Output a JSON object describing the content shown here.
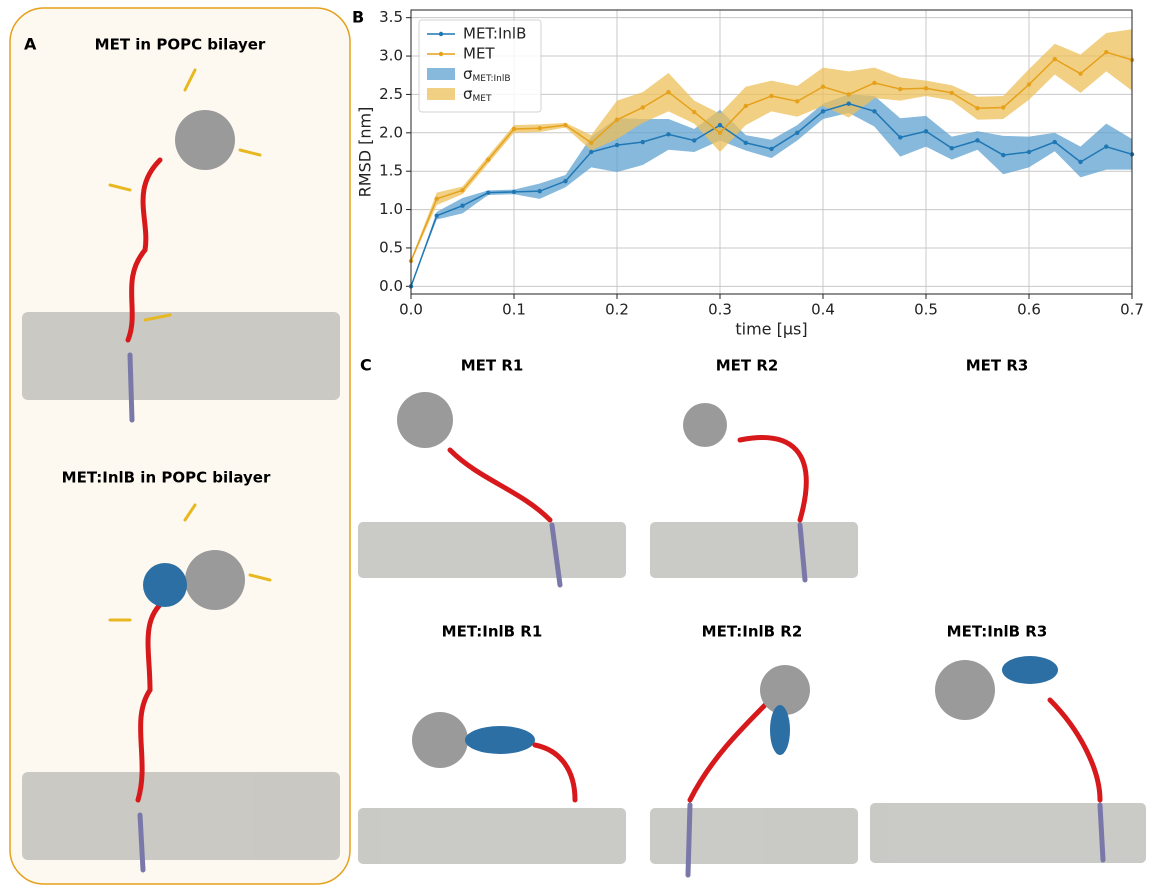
{
  "panel_labels": [
    "A",
    "B",
    "C"
  ],
  "panel_a_titles": [
    "MET in POPC bilayer",
    "MET:InlB in POPC bilayer"
  ],
  "panel_c_titles": [
    "MET R1",
    "MET R2",
    "MET R3",
    "MET:InlB R1",
    "MET:InlB R2",
    "MET:InlB R3"
  ],
  "chart_data": {
    "type": "line",
    "x_label": "time [μs]",
    "y_label": "RMSD [nm]",
    "x": [
      0,
      0.025,
      0.05,
      0.075,
      0.1,
      0.125,
      0.15,
      0.175,
      0.2,
      0.225,
      0.25,
      0.275,
      0.3,
      0.325,
      0.35,
      0.375,
      0.4,
      0.425,
      0.45,
      0.475,
      0.5,
      0.525,
      0.55,
      0.575,
      0.6,
      0.625,
      0.65,
      0.675,
      0.7
    ],
    "series": [
      {
        "name": "MET:InlB",
        "color": "#1f77b4",
        "values": [
          0.0,
          0.92,
          1.05,
          1.22,
          1.23,
          1.24,
          1.37,
          1.75,
          1.84,
          1.88,
          1.98,
          1.9,
          2.1,
          1.87,
          1.79,
          2.0,
          2.28,
          2.38,
          2.28,
          1.94,
          2.02,
          1.8,
          1.9,
          1.71,
          1.75,
          1.88,
          1.62,
          1.82,
          1.72
        ],
        "band": {
          "symbol": "σ",
          "subscript": "MET:InlB",
          "color": "#5fa2d0",
          "errors": [
            0.0,
            0.05,
            0.1,
            0.03,
            0.03,
            0.1,
            0.08,
            0.2,
            0.35,
            0.3,
            0.2,
            0.15,
            0.2,
            0.1,
            0.12,
            0.1,
            0.1,
            0.12,
            0.2,
            0.25,
            0.2,
            0.15,
            0.12,
            0.25,
            0.2,
            0.12,
            0.2,
            0.3,
            0.2
          ]
        }
      },
      {
        "name": "MET",
        "color": "#e6a11c",
        "values": [
          0.33,
          1.14,
          1.25,
          1.65,
          2.05,
          2.06,
          2.1,
          1.87,
          2.17,
          2.33,
          2.53,
          2.27,
          2.0,
          2.35,
          2.48,
          2.41,
          2.6,
          2.5,
          2.65,
          2.57,
          2.58,
          2.52,
          2.32,
          2.33,
          2.63,
          2.96,
          2.77,
          3.05,
          2.95
        ],
        "band": {
          "symbol": "σ",
          "subscript": "MET",
          "color": "#eec05a",
          "errors": [
            0.02,
            0.08,
            0.05,
            0.05,
            0.05,
            0.05,
            0.03,
            0.1,
            0.25,
            0.2,
            0.25,
            0.15,
            0.25,
            0.25,
            0.2,
            0.2,
            0.25,
            0.3,
            0.2,
            0.15,
            0.1,
            0.1,
            0.15,
            0.15,
            0.2,
            0.2,
            0.25,
            0.25,
            0.4
          ]
        }
      }
    ],
    "xlim": [
      0,
      0.7
    ],
    "ylim": [
      -0.1,
      3.6
    ],
    "xticks": [
      {
        "value": 0,
        "label": "0.0"
      },
      0.1,
      0.2,
      0.3,
      0.4,
      0.5,
      0.6,
      0.7
    ],
    "yticks": [
      {
        "value": 0,
        "label": "0.0"
      },
      0.5,
      {
        "value": 1,
        "label": "1.0"
      },
      1.5,
      {
        "value": 2,
        "label": "2.0"
      },
      2.5,
      {
        "value": 3,
        "label": "3.0"
      },
      3.5
    ],
    "grid": true,
    "legend": "upper-left"
  }
}
